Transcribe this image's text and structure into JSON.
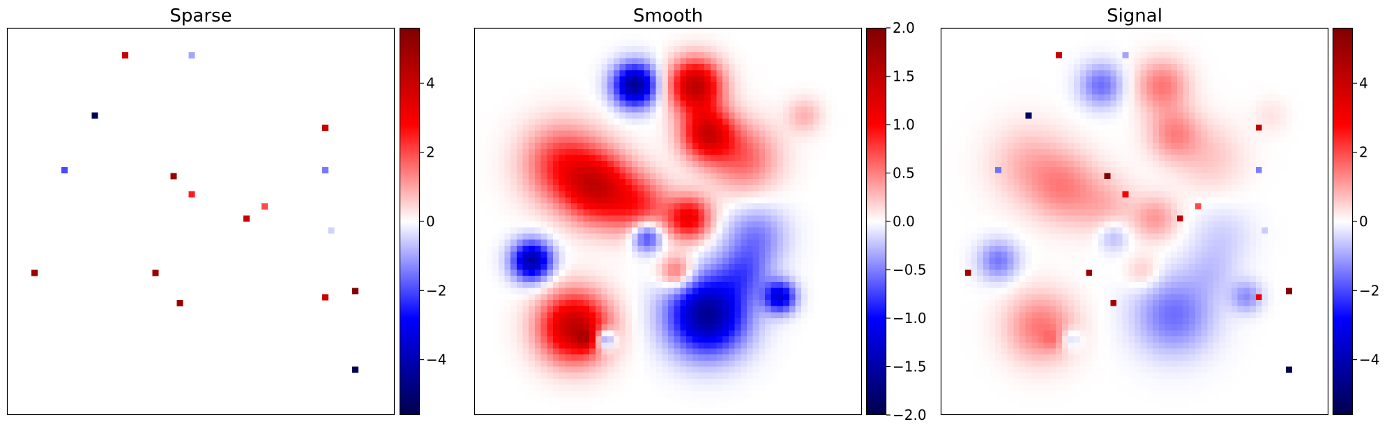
{
  "chart_data": [
    {
      "type": "heatmap",
      "title": "Sparse",
      "grid_size": 64,
      "colormap": "seismic",
      "colorbar": {
        "min": -5.6,
        "max": 5.6,
        "ticks": [
          -4,
          -2,
          0,
          2,
          4
        ],
        "tick_labels": [
          "−4",
          "−2",
          "0",
          "2",
          "4"
        ]
      },
      "axes_ticks": false,
      "points": [
        {
          "col": 19,
          "row": 4,
          "value": 4.0
        },
        {
          "col": 30,
          "row": 4,
          "value": -1.0
        },
        {
          "col": 14,
          "row": 14,
          "value": -5.5
        },
        {
          "col": 52,
          "row": 16,
          "value": 4.0
        },
        {
          "col": 9,
          "row": 23,
          "value": -2.0
        },
        {
          "col": 27,
          "row": 24,
          "value": 5.0
        },
        {
          "col": 52,
          "row": 23,
          "value": -1.5
        },
        {
          "col": 30,
          "row": 27,
          "value": 2.5
        },
        {
          "col": 42,
          "row": 29,
          "value": 2.0
        },
        {
          "col": 39,
          "row": 31,
          "value": 4.0
        },
        {
          "col": 53,
          "row": 33,
          "value": -0.5
        },
        {
          "col": 4,
          "row": 40,
          "value": 5.0
        },
        {
          "col": 24,
          "row": 40,
          "value": 5.0
        },
        {
          "col": 57,
          "row": 43,
          "value": 5.5
        },
        {
          "col": 52,
          "row": 44,
          "value": 4.0
        },
        {
          "col": 28,
          "row": 45,
          "value": 5.0
        },
        {
          "col": 57,
          "row": 56,
          "value": -5.5
        }
      ]
    },
    {
      "type": "heatmap",
      "title": "Smooth",
      "grid_size": 64,
      "colormap": "seismic",
      "colorbar": {
        "min": -2.0,
        "max": 2.0,
        "ticks": [
          2.0,
          1.5,
          1.0,
          0.5,
          0.0,
          -0.5,
          -1.0,
          -1.5,
          -2.0
        ],
        "tick_labels": [
          "2.0",
          "1.5",
          "1.0",
          "0.5",
          "0.0",
          "−0.5",
          "−1.0",
          "−1.5",
          "−2.0"
        ]
      },
      "axes_ticks": false,
      "blobs": [
        {
          "col": 26,
          "row": 9,
          "amplitude": -1.6,
          "sigma": 2.5
        },
        {
          "col": 36,
          "row": 9,
          "amplitude": 1.5,
          "sigma": 3.0
        },
        {
          "col": 38,
          "row": 17,
          "amplitude": 1.3,
          "sigma": 3.0
        },
        {
          "col": 44,
          "row": 21,
          "amplitude": 0.6,
          "sigma": 4.0
        },
        {
          "col": 54,
          "row": 14,
          "amplitude": 0.3,
          "sigma": 2.0
        },
        {
          "col": 14,
          "row": 22,
          "amplitude": 0.8,
          "sigma": 4.5
        },
        {
          "col": 20,
          "row": 26,
          "amplitude": 1.2,
          "sigma": 4.0
        },
        {
          "col": 27,
          "row": 29,
          "amplitude": 0.7,
          "sigma": 3.5
        },
        {
          "col": 35,
          "row": 31,
          "amplitude": 1.1,
          "sigma": 2.5
        },
        {
          "col": 28,
          "row": 34,
          "amplitude": -0.9,
          "sigma": 1.8
        },
        {
          "col": 46,
          "row": 34,
          "amplitude": -0.5,
          "sigma": 3.5
        },
        {
          "col": 9,
          "row": 38,
          "amplitude": -1.5,
          "sigma": 2.3
        },
        {
          "col": 33,
          "row": 40,
          "amplitude": 0.7,
          "sigma": 2.0
        },
        {
          "col": 38,
          "row": 47,
          "amplitude": -1.6,
          "sigma": 4.5
        },
        {
          "col": 44,
          "row": 40,
          "amplitude": -0.5,
          "sigma": 3.0
        },
        {
          "col": 50,
          "row": 44,
          "amplitude": -1.2,
          "sigma": 1.8
        },
        {
          "col": 16,
          "row": 49,
          "amplitude": 1.5,
          "sigma": 4.0
        },
        {
          "col": 18,
          "row": 51,
          "amplitude": 0.5,
          "sigma": 1.2
        },
        {
          "col": 21,
          "row": 51,
          "amplitude": -0.9,
          "sigma": 1.2
        }
      ]
    },
    {
      "type": "heatmap",
      "title": "Signal",
      "grid_size": 64,
      "colormap": "seismic",
      "colorbar": {
        "min": -5.6,
        "max": 5.6,
        "ticks": [
          -4,
          -2,
          0,
          2,
          4
        ],
        "tick_labels": [
          "−4",
          "−2",
          "0",
          "2",
          "4"
        ]
      },
      "axes_ticks": false,
      "composition": "sum of Sparse and Smooth"
    }
  ]
}
